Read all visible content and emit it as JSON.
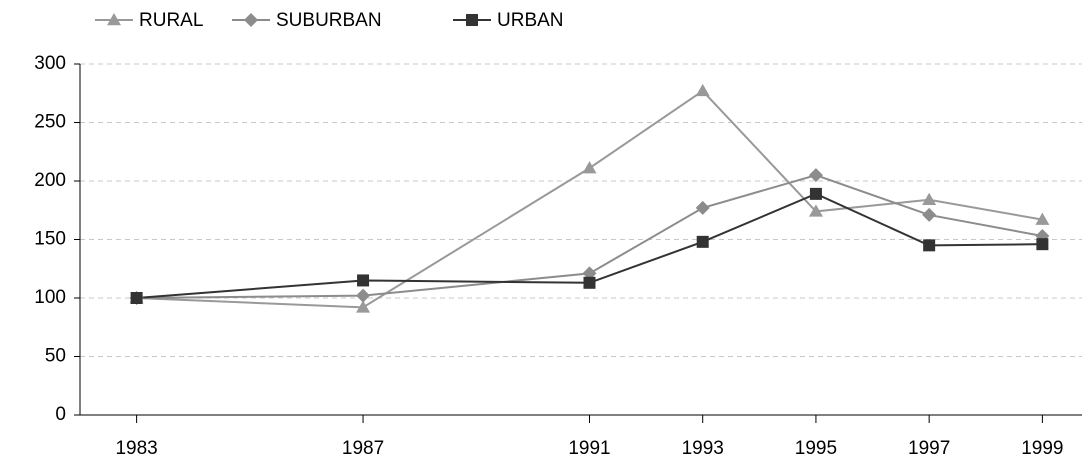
{
  "chart_data": {
    "type": "line",
    "x": [
      1983,
      1987,
      1991,
      1993,
      1995,
      1997,
      1999
    ],
    "series": [
      {
        "name": "RURAL",
        "color": "#999999",
        "marker": "triangle",
        "values": [
          100,
          92,
          211,
          277,
          174,
          184,
          167
        ]
      },
      {
        "name": "SUBURBAN",
        "color": "#8c8c8c",
        "marker": "diamond",
        "values": [
          100,
          102,
          121,
          177,
          205,
          171,
          153
        ]
      },
      {
        "name": "URBAN",
        "color": "#333333",
        "marker": "square",
        "values": [
          100,
          115,
          113,
          148,
          189,
          145,
          146
        ]
      }
    ],
    "xlim": [
      1982,
      1999.7
    ],
    "xticks": [
      1983,
      1987,
      1991,
      1993,
      1995,
      1997,
      1999
    ],
    "ylim": [
      0,
      300
    ],
    "yticks": [
      0,
      50,
      100,
      150,
      200,
      250,
      300
    ],
    "grid": true,
    "legend": "top"
  }
}
